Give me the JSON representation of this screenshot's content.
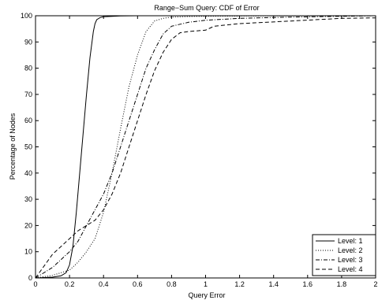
{
  "chart_data": {
    "type": "line",
    "title": "Range−Sum Query: CDF of Error",
    "xlabel": "Query Error",
    "ylabel": "Percentage of Nodes",
    "xlim": [
      0,
      2
    ],
    "ylim": [
      0,
      100
    ],
    "xticks": [
      "0",
      "0.2",
      "0.4",
      "0.6",
      "0.8",
      "1",
      "1.2",
      "1.4",
      "1.6",
      "1.8",
      "2"
    ],
    "yticks": [
      "0",
      "10",
      "20",
      "30",
      "40",
      "50",
      "60",
      "70",
      "80",
      "90",
      "100"
    ],
    "grid": false,
    "legend_position": "bottom-right",
    "series": [
      {
        "name": "Level: 1",
        "style": "solid",
        "x": [
          0,
          0.1,
          0.15,
          0.18,
          0.2,
          0.22,
          0.24,
          0.26,
          0.28,
          0.3,
          0.32,
          0.34,
          0.35,
          0.36,
          0.38,
          0.4,
          0.45,
          0.5,
          0.6,
          0.8,
          1.0,
          1.5,
          2.0
        ],
        "y": [
          0,
          0.3,
          0.8,
          2,
          5,
          12,
          25,
          40,
          55,
          70,
          84,
          94,
          97,
          98.5,
          99.3,
          99.6,
          99.8,
          99.9,
          100,
          100,
          100,
          100,
          100
        ]
      },
      {
        "name": "Level: 2",
        "style": "dotted",
        "x": [
          0,
          0.1,
          0.2,
          0.25,
          0.3,
          0.35,
          0.4,
          0.45,
          0.5,
          0.55,
          0.6,
          0.65,
          0.7,
          0.75,
          0.8,
          0.9,
          1.0,
          1.2,
          1.5,
          2.0
        ],
        "y": [
          0,
          1,
          3,
          6,
          10,
          15,
          25,
          40,
          57,
          73,
          85,
          94,
          98,
          99,
          99.5,
          99.7,
          99.8,
          99.9,
          100,
          100
        ]
      },
      {
        "name": "Level: 3",
        "style": "dashdot",
        "x": [
          0,
          0.1,
          0.2,
          0.25,
          0.3,
          0.35,
          0.4,
          0.45,
          0.5,
          0.55,
          0.6,
          0.65,
          0.7,
          0.75,
          0.8,
          0.9,
          1.0,
          1.2,
          1.5,
          2.0
        ],
        "y": [
          0,
          4,
          10,
          14,
          20,
          26,
          32,
          40,
          50,
          60,
          70,
          80,
          87,
          93,
          96,
          97.5,
          98.3,
          99,
          99.5,
          100
        ]
      },
      {
        "name": "Level: 4",
        "style": "dashed",
        "x": [
          0,
          0.1,
          0.2,
          0.25,
          0.3,
          0.35,
          0.4,
          0.45,
          0.5,
          0.55,
          0.6,
          0.65,
          0.7,
          0.75,
          0.8,
          0.85,
          0.9,
          1.0,
          1.05,
          1.2,
          1.5,
          1.8,
          2.0
        ],
        "y": [
          0,
          9,
          15,
          18,
          20,
          22,
          26,
          32,
          40,
          50,
          60,
          70,
          79,
          86,
          91,
          93.5,
          94,
          94.5,
          96,
          97,
          98,
          99,
          99.2
        ]
      }
    ]
  }
}
